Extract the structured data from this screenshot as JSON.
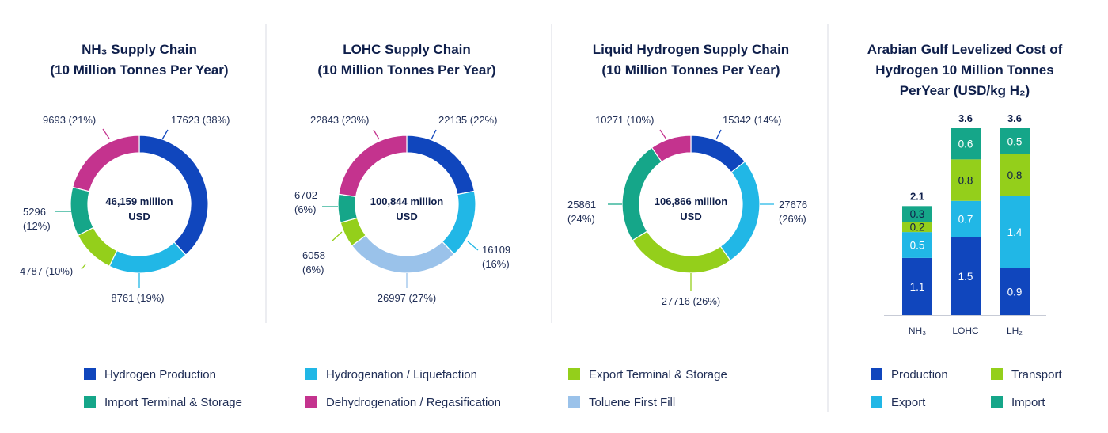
{
  "colors": {
    "hydrogen_production": "#1046bd",
    "hydrogenation_liquefaction": "#21b7e6",
    "export_terminal_storage": "#94cf1b",
    "import_terminal_storage": "#15a689",
    "dehydrogenation_regasification": "#c4338e",
    "toluene_first_fill": "#9ac2ea"
  },
  "chart_data": [
    {
      "type": "pie",
      "title": [
        "NH₃ Supply Chain",
        "(10 Million Tonnes Per Year)"
      ],
      "center_text": [
        "46,159 million",
        "USD"
      ],
      "slices": [
        {
          "name": "Hydrogen Production",
          "value": 17623,
          "label": "17623 (38%)",
          "color": "#1046bd"
        },
        {
          "name": "Hydrogenation / Liquefaction",
          "value": 8761,
          "label": "8761 (19%)",
          "color": "#21b7e6"
        },
        {
          "name": "Export Terminal & Storage",
          "value": 4787,
          "label": "4787 (10%)",
          "color": "#94cf1b"
        },
        {
          "name": "Import Terminal & Storage",
          "value": 5296,
          "label": [
            "5296",
            "(12%)"
          ],
          "color": "#15a689"
        },
        {
          "name": "Dehydrogenation / Regasification",
          "value": 9693,
          "label": "9693 (21%)",
          "color": "#c4338e"
        }
      ]
    },
    {
      "type": "pie",
      "title": [
        "LOHC Supply Chain",
        "(10 Million Tonnes Per Year)"
      ],
      "center_text": [
        "100,844 million",
        "USD"
      ],
      "slices": [
        {
          "name": "Hydrogen Production",
          "value": 22135,
          "label": "22135 (22%)",
          "color": "#1046bd"
        },
        {
          "name": "Hydrogenation / Liquefaction",
          "value": 16109,
          "label": [
            "16109",
            "(16%)"
          ],
          "color": "#21b7e6"
        },
        {
          "name": "Toluene First Fill",
          "value": 26997,
          "label": "26997 (27%)",
          "color": "#9ac2ea"
        },
        {
          "name": "Export Terminal & Storage",
          "value": 6058,
          "label": [
            "6058",
            "(6%)"
          ],
          "color": "#94cf1b"
        },
        {
          "name": "Import Terminal & Storage",
          "value": 6702,
          "label": [
            "6702",
            "(6%)"
          ],
          "color": "#15a689"
        },
        {
          "name": "Dehydrogenation / Regasification",
          "value": 22843,
          "label": "22843 (23%)",
          "color": "#c4338e"
        }
      ]
    },
    {
      "type": "pie",
      "title": [
        "Liquid Hydrogen Supply Chain",
        "(10 Million Tonnes Per Year)"
      ],
      "center_text": [
        "106,866 million",
        "USD"
      ],
      "slices": [
        {
          "name": "Hydrogen Production",
          "value": 15342,
          "label": "15342 (14%)",
          "color": "#1046bd"
        },
        {
          "name": "Hydrogenation / Liquefaction",
          "value": 27676,
          "label": [
            "27676",
            "(26%)"
          ],
          "color": "#21b7e6"
        },
        {
          "name": "Export Terminal & Storage",
          "value": 27716,
          "label": "27716 (26%)",
          "color": "#94cf1b"
        },
        {
          "name": "Import Terminal & Storage",
          "value": 25861,
          "label": [
            "25861",
            "(24%)"
          ],
          "color": "#15a689"
        },
        {
          "name": "Dehydrogenation / Regasification",
          "value": 10271,
          "label": "10271 (10%)",
          "color": "#c4338e"
        }
      ]
    },
    {
      "type": "bar",
      "stacked": true,
      "title": [
        "Arabian Gulf Levelized Cost of",
        "Hydrogen 10 Million Tonnes",
        "PerYear (USD/kg H₂)"
      ],
      "categories": [
        "NH₃",
        "LOHC",
        "LH₂"
      ],
      "totals": [
        "2.1",
        "3.6",
        "3.6"
      ],
      "ylim": [
        0,
        3.6
      ],
      "series": [
        {
          "name": "Production",
          "values": [
            1.1,
            1.5,
            0.9
          ],
          "labels": [
            "1.1",
            "1.5",
            "0.9"
          ],
          "color": "#1046bd"
        },
        {
          "name": "Export",
          "values": [
            0.5,
            0.7,
            1.4
          ],
          "labels": [
            "0.5",
            "0.7",
            "1.4"
          ],
          "color": "#21b7e6"
        },
        {
          "name": "Transport",
          "values": [
            0.2,
            0.8,
            0.8
          ],
          "labels": [
            "0.2",
            "0.8",
            "0.8"
          ],
          "color": "#94cf1b"
        },
        {
          "name": "Import",
          "values": [
            0.3,
            0.6,
            0.5
          ],
          "labels": [
            "0.3",
            "0.6",
            "0.5"
          ],
          "color": "#15a689"
        }
      ]
    }
  ],
  "legend_left": [
    {
      "label": "Hydrogen Production",
      "color": "#1046bd"
    },
    {
      "label": "Hydrogenation / Liquefaction",
      "color": "#21b7e6"
    },
    {
      "label": "Export Terminal & Storage",
      "color": "#94cf1b"
    },
    {
      "label": "Import Terminal & Storage",
      "color": "#15a689"
    },
    {
      "label": "Dehydrogenation / Regasification",
      "color": "#c4338e"
    },
    {
      "label": "Toluene First Fill",
      "color": "#9ac2ea"
    }
  ],
  "legend_right": [
    {
      "label": "Production",
      "color": "#1046bd"
    },
    {
      "label": "Transport",
      "color": "#94cf1b"
    },
    {
      "label": "Export",
      "color": "#21b7e6"
    },
    {
      "label": "Import",
      "color": "#15a689"
    }
  ]
}
